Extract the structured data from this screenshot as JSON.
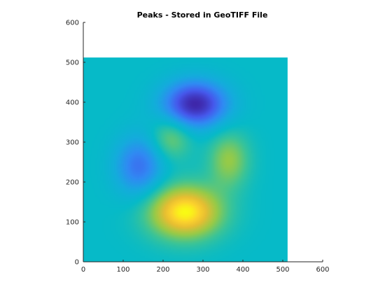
{
  "chart_data": {
    "type": "heatmap",
    "title": "Peaks - Stored in GeoTIFF File",
    "xlabel": "",
    "ylabel": "",
    "xlim": [
      0,
      600
    ],
    "ylim": [
      0,
      600
    ],
    "x_ticks": [
      0,
      100,
      200,
      300,
      400,
      500,
      600
    ],
    "y_ticks": [
      0,
      100,
      200,
      300,
      400,
      500,
      600
    ],
    "raster_extent": {
      "x": [
        0,
        512
      ],
      "y": [
        0,
        512
      ]
    },
    "colormap": "parula",
    "background_color": "#ffffff",
    "features": [
      {
        "name": "peak-yellow",
        "x": 255,
        "y": 125,
        "level": 1.0
      },
      {
        "name": "trough-dark-blue",
        "x": 280,
        "y": 395,
        "level": 0.0
      },
      {
        "name": "trough-blue-left",
        "x": 140,
        "y": 240,
        "level": 0.22
      },
      {
        "name": "bump-right",
        "x": 365,
        "y": 255,
        "level": 0.72
      },
      {
        "name": "bump-upper-middle",
        "x": 220,
        "y": 310,
        "level": 0.68
      }
    ],
    "base_level": 0.5,
    "grid": false,
    "legend": "none"
  }
}
